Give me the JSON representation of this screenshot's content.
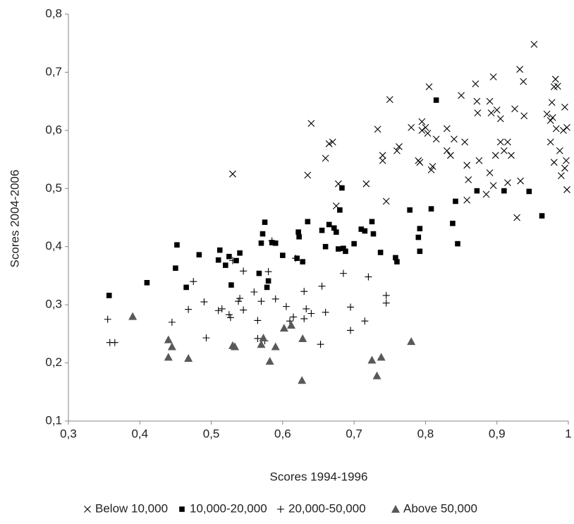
{
  "chart_data": {
    "type": "scatter",
    "x_label": "Scores 1994-1996",
    "y_label": "Scores 2004-2006",
    "xlim": [
      0.3,
      1
    ],
    "ylim": [
      0.1,
      0.8
    ],
    "xticks": [
      {
        "value": 0.3,
        "label": "0,3"
      },
      {
        "value": 0.4,
        "label": "0,4"
      },
      {
        "value": 0.5,
        "label": "0,5"
      },
      {
        "value": 0.6,
        "label": "0,6"
      },
      {
        "value": 0.7,
        "label": "0,7"
      },
      {
        "value": 0.8,
        "label": "0,8"
      },
      {
        "value": 0.9,
        "label": "0,9"
      },
      1
    ],
    "yticks": [
      {
        "value": 0.1,
        "label": "0,1"
      },
      {
        "value": 0.2,
        "label": "0,2"
      },
      {
        "value": 0.3,
        "label": "0,3"
      },
      {
        "value": 0.4,
        "label": "0,4"
      },
      {
        "value": 0.5,
        "label": "0,5"
      },
      {
        "value": 0.6,
        "label": "0,6"
      },
      {
        "value": 0.7,
        "label": "0,7"
      },
      {
        "value": 0.8,
        "label": "0,8"
      }
    ],
    "grid": false,
    "legend": "bottom",
    "series": [
      {
        "name": "Below 10,000",
        "marker": "x",
        "color": "#000000",
        "x": [
          0.53,
          0.64,
          0.635,
          0.66,
          0.665,
          0.67,
          0.675,
          0.678,
          0.717,
          0.733,
          0.74,
          0.74,
          0.745,
          0.75,
          0.76,
          0.763,
          0.78,
          0.79,
          0.792,
          0.795,
          0.795,
          0.8,
          0.803,
          0.805,
          0.808,
          0.81,
          0.815,
          0.83,
          0.83,
          0.835,
          0.84,
          0.85,
          0.855,
          0.858,
          0.86,
          0.858,
          0.87,
          0.872,
          0.873,
          0.875,
          0.885,
          0.89,
          0.89,
          0.892,
          0.895,
          0.895,
          0.898,
          0.9,
          0.905,
          0.905,
          0.91,
          0.915,
          0.915,
          0.92,
          0.925,
          0.928,
          0.932,
          0.933,
          0.937,
          0.938,
          0.952,
          0.97,
          0.975,
          0.975,
          0.977,
          0.978,
          0.98,
          0.982,
          0.98,
          0.983,
          0.985,
          0.988,
          0.99,
          0.993,
          0.995,
          0.995,
          0.997,
          0.998,
          0.998
        ],
        "values": [
          0.525,
          0.612,
          0.523,
          0.552,
          0.577,
          0.58,
          0.47,
          0.508,
          0.508,
          0.602,
          0.548,
          0.557,
          0.478,
          0.653,
          0.565,
          0.572,
          0.605,
          0.548,
          0.545,
          0.615,
          0.6,
          0.605,
          0.595,
          0.675,
          0.532,
          0.538,
          0.585,
          0.603,
          0.565,
          0.557,
          0.585,
          0.66,
          0.58,
          0.48,
          0.515,
          0.54,
          0.68,
          0.65,
          0.63,
          0.548,
          0.49,
          0.65,
          0.527,
          0.63,
          0.692,
          0.505,
          0.557,
          0.635,
          0.62,
          0.58,
          0.565,
          0.58,
          0.51,
          0.557,
          0.637,
          0.45,
          0.705,
          0.513,
          0.684,
          0.625,
          0.748,
          0.628,
          0.617,
          0.58,
          0.648,
          0.622,
          0.675,
          0.688,
          0.545,
          0.603,
          0.676,
          0.565,
          0.522,
          0.6,
          0.535,
          0.64,
          0.548,
          0.498,
          0.605
        ]
      },
      {
        "name": "10,000-20,000",
        "marker": "square",
        "color": "#000000",
        "x": [
          0.357,
          0.41,
          0.45,
          0.452,
          0.465,
          0.483,
          0.51,
          0.512,
          0.52,
          0.525,
          0.528,
          0.535,
          0.54,
          0.567,
          0.57,
          0.572,
          0.575,
          0.578,
          0.58,
          0.585,
          0.59,
          0.6,
          0.62,
          0.622,
          0.623,
          0.628,
          0.635,
          0.655,
          0.66,
          0.665,
          0.672,
          0.675,
          0.678,
          0.68,
          0.683,
          0.685,
          0.688,
          0.7,
          0.71,
          0.715,
          0.725,
          0.727,
          0.737,
          0.758,
          0.76,
          0.778,
          0.79,
          0.792,
          0.792,
          0.808,
          0.815,
          0.838,
          0.842,
          0.845,
          0.872,
          0.91,
          0.945,
          0.963
        ],
        "values": [
          0.316,
          0.338,
          0.363,
          0.403,
          0.33,
          0.386,
          0.377,
          0.394,
          0.368,
          0.383,
          0.334,
          0.376,
          0.389,
          0.354,
          0.406,
          0.422,
          0.442,
          0.33,
          0.341,
          0.407,
          0.406,
          0.385,
          0.38,
          0.425,
          0.417,
          0.374,
          0.443,
          0.428,
          0.4,
          0.438,
          0.432,
          0.425,
          0.396,
          0.463,
          0.501,
          0.397,
          0.392,
          0.405,
          0.43,
          0.427,
          0.443,
          0.422,
          0.39,
          0.381,
          0.374,
          0.463,
          0.416,
          0.431,
          0.392,
          0.465,
          0.652,
          0.44,
          0.478,
          0.405,
          0.496,
          0.496,
          0.495,
          0.453
        ]
      },
      {
        "name": "20,000-50,000",
        "marker": "plus",
        "color": "#000000",
        "x": [
          0.355,
          0.358,
          0.365,
          0.445,
          0.468,
          0.475,
          0.49,
          0.493,
          0.51,
          0.515,
          0.525,
          0.527,
          0.53,
          0.538,
          0.54,
          0.545,
          0.545,
          0.56,
          0.565,
          0.565,
          0.57,
          0.575,
          0.58,
          0.585,
          0.59,
          0.605,
          0.61,
          0.615,
          0.618,
          0.63,
          0.63,
          0.633,
          0.64,
          0.653,
          0.655,
          0.66,
          0.685,
          0.695,
          0.695,
          0.715,
          0.72,
          0.745,
          0.745
        ],
        "values": [
          0.275,
          0.235,
          0.235,
          0.27,
          0.292,
          0.34,
          0.305,
          0.243,
          0.29,
          0.293,
          0.283,
          0.278,
          0.376,
          0.306,
          0.311,
          0.358,
          0.291,
          0.322,
          0.273,
          0.242,
          0.306,
          0.238,
          0.357,
          0.41,
          0.31,
          0.297,
          0.272,
          0.279,
          0.38,
          0.323,
          0.276,
          0.293,
          0.285,
          0.232,
          0.332,
          0.287,
          0.354,
          0.256,
          0.296,
          0.272,
          0.348,
          0.316,
          0.303
        ]
      },
      {
        "name": "Above 50,000",
        "marker": "triangle",
        "color": "#595959",
        "x": [
          0.39,
          0.44,
          0.44,
          0.445,
          0.468,
          0.53,
          0.533,
          0.57,
          0.573,
          0.582,
          0.59,
          0.602,
          0.612,
          0.627,
          0.628,
          0.725,
          0.732,
          0.738,
          0.78
        ],
        "values": [
          0.28,
          0.24,
          0.21,
          0.228,
          0.208,
          0.23,
          0.228,
          0.232,
          0.243,
          0.203,
          0.228,
          0.26,
          0.265,
          0.17,
          0.242,
          0.205,
          0.178,
          0.21,
          0.237
        ]
      }
    ]
  }
}
